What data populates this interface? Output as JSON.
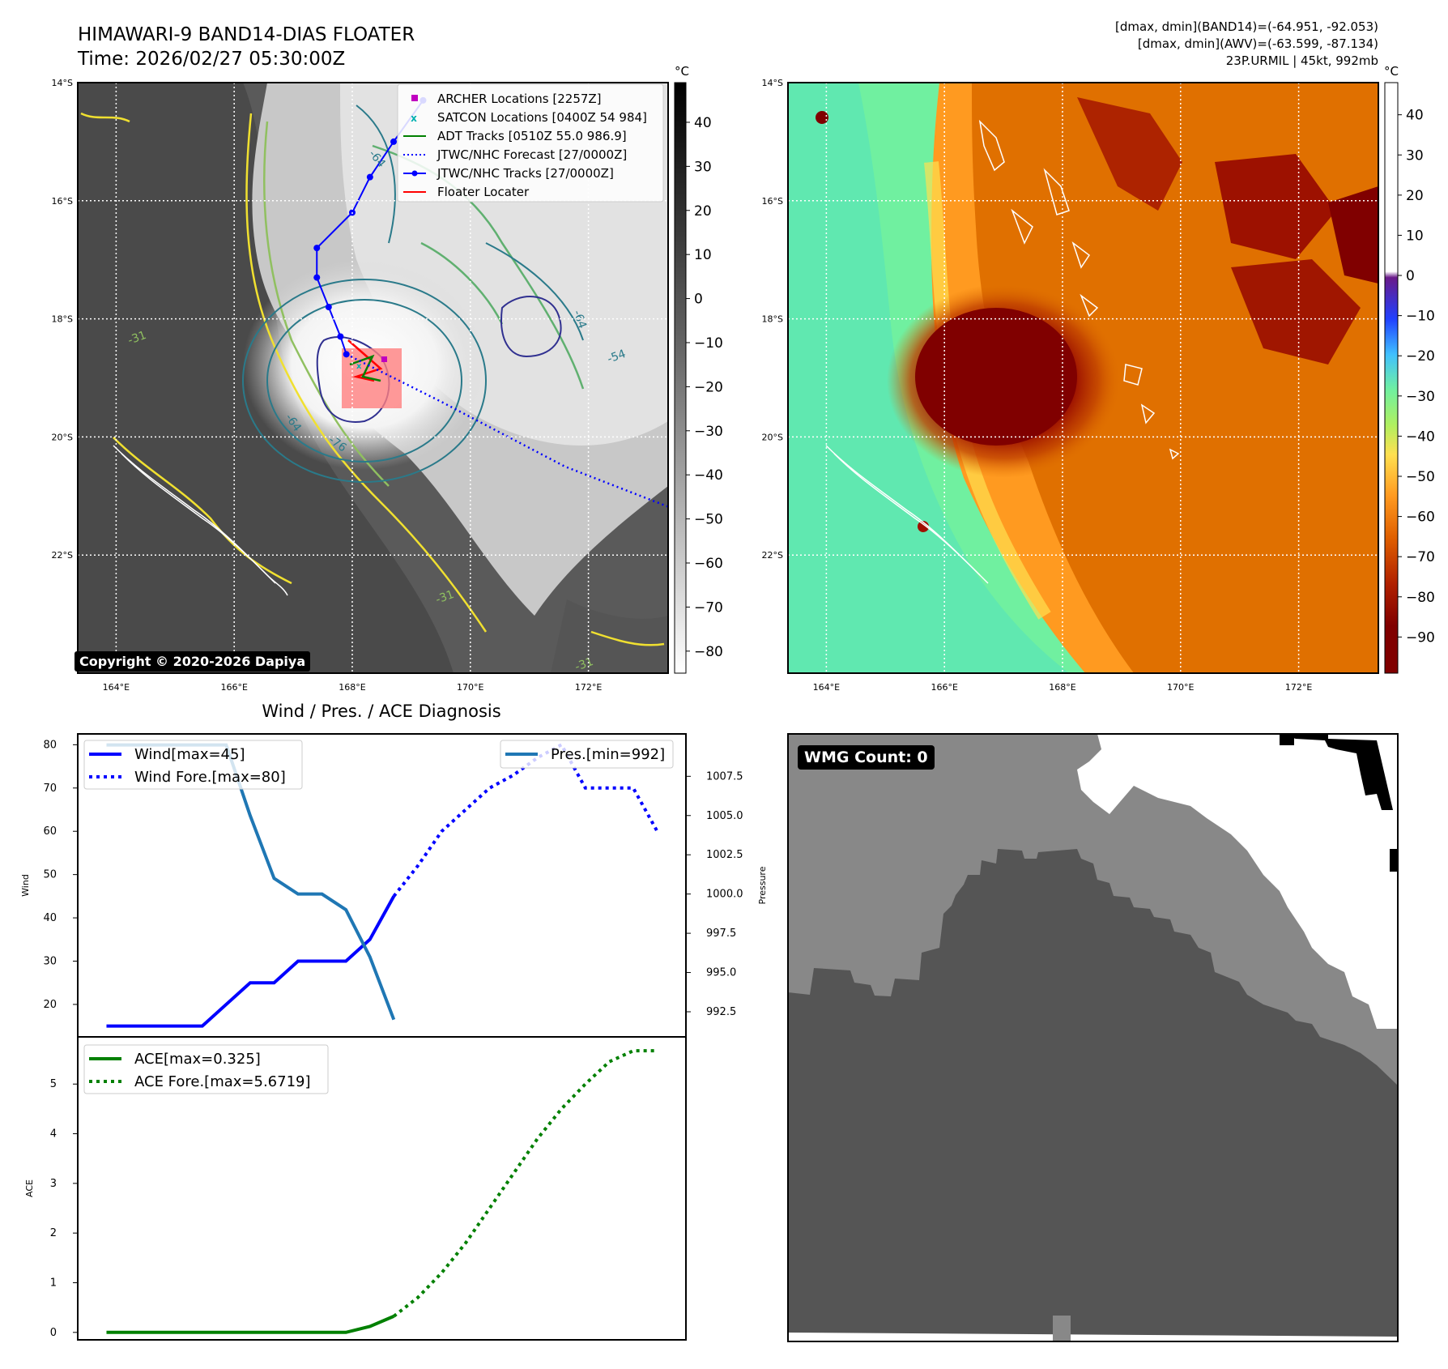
{
  "header": {
    "title_line1": "HIMAWARI-9 BAND14-DIAS FLOATER",
    "title_line2": "Time: 2026/02/27 05:30:00Z",
    "info_line1": "[dmax, dmin](BAND14)=(-64.951, -92.053)",
    "info_line2": "[dmax, dmin](AWV)=(-63.599, -87.134)",
    "info_line3": "23P.URMIL | 45kt, 992mb"
  },
  "copyright": "Copyright © 2020-2026 Dapiya",
  "map": {
    "lat_ticks": [
      "14°S",
      "16°S",
      "18°S",
      "20°S",
      "22°S"
    ],
    "lon_ticks": [
      "164°E",
      "166°E",
      "168°E",
      "170°E",
      "172°E"
    ],
    "lat_range": [
      -24,
      -14
    ],
    "lon_range": [
      163.35,
      173.35
    ],
    "colors": {
      "adt": "#008000",
      "jtwc": "#0000ff",
      "archer": "#c000c0",
      "satcon": "#00b0b0",
      "floater": "#ff0000",
      "floater_box": "#ff8080"
    }
  },
  "legend_map": [
    {
      "label": "ARCHER Locations [2257Z]",
      "icon": "square-marker"
    },
    {
      "label": "SATCON Locations [0400Z 54 984]",
      "icon": "x-marker"
    },
    {
      "label": "ADT Tracks [0510Z 55.0 986.9]",
      "icon": "solid-line"
    },
    {
      "label": "JTWC/NHC Forecast [27/0000Z]",
      "icon": "dotted-line"
    },
    {
      "label": "JTWC/NHC Tracks [27/0000Z]",
      "icon": "line-dot"
    },
    {
      "label": "Floater Locater",
      "icon": "red-line"
    }
  ],
  "contour_labels": [
    "-64",
    "-64",
    "-76",
    "-64",
    "-54",
    "-31",
    "-31",
    "-31"
  ],
  "colorbar_gray": {
    "unit": "°C",
    "ticks": [
      "40",
      "30",
      "20",
      "10",
      "0",
      "−10",
      "−20",
      "−30",
      "−40",
      "−50",
      "−60",
      "−70",
      "−80"
    ],
    "values": [
      40,
      30,
      20,
      10,
      0,
      -10,
      -20,
      -30,
      -40,
      -50,
      -60,
      -70,
      -80
    ],
    "range": [
      -85,
      49
    ]
  },
  "colorbar_color": {
    "unit": "°C",
    "ticks": [
      "40",
      "30",
      "20",
      "10",
      "0",
      "−10",
      "−20",
      "−30",
      "−40",
      "−50",
      "−60",
      "−70",
      "−80",
      "−90"
    ],
    "values": [
      40,
      30,
      20,
      10,
      0,
      -10,
      -20,
      -30,
      -40,
      -50,
      -60,
      -70,
      -80,
      -90
    ],
    "range": [
      -99,
      48
    ]
  },
  "chart_data": [
    {
      "type": "line",
      "title": "Wind / Pres. / ACE Diagnosis",
      "ylabel": "Wind",
      "ylabel_right": "Pressure",
      "ylim": [
        12.5,
        82.5
      ],
      "yticks": [
        20,
        30,
        40,
        50,
        60,
        70,
        80
      ],
      "y2lim": [
        990.9,
        1010.2
      ],
      "y2ticks": [
        992.5,
        995.0,
        997.5,
        1000.0,
        1002.5,
        1005.0,
        1007.5
      ],
      "y2tick_labels": [
        "992.5",
        "995.0",
        "997.5",
        "1000.0",
        "1002.5",
        "1005.0",
        "1007.5"
      ],
      "xlim": [
        -0.2,
        25.2
      ],
      "series": [
        {
          "name": "Wind[max=45]",
          "style": "solid",
          "color": "#0000ff",
          "axis": "left",
          "x": [
            1,
            2,
            3,
            4,
            5,
            6,
            7,
            8,
            9,
            10,
            11,
            12,
            13
          ],
          "values": [
            15,
            15,
            15,
            15,
            15,
            20,
            25,
            25,
            30,
            30,
            30,
            35,
            45
          ]
        },
        {
          "name": "Wind Fore.[max=80]",
          "style": "dotted",
          "color": "#0000ff",
          "axis": "left",
          "x": [
            13,
            14,
            15,
            16,
            17,
            18,
            19,
            20,
            21,
            22,
            23,
            24
          ],
          "values": [
            45,
            52,
            60,
            65,
            70,
            73,
            77,
            80,
            70,
            70,
            70,
            60
          ]
        },
        {
          "name": "Pres.[min=992]",
          "style": "solid",
          "color": "#1f77b4",
          "axis": "right",
          "x": [
            1,
            2,
            3,
            4,
            5,
            6,
            7,
            8,
            9,
            10,
            11,
            12,
            13
          ],
          "values": [
            1009.5,
            1009.5,
            1009.5,
            1009.5,
            1009.5,
            1009.5,
            1005,
            1001,
            1000,
            1000,
            999,
            996,
            992
          ]
        }
      ]
    },
    {
      "type": "line",
      "ylabel": "ACE",
      "ylim": [
        -0.15,
        5.95
      ],
      "yticks": [
        0,
        1,
        2,
        3,
        4,
        5
      ],
      "xlim": [
        -0.2,
        25.2
      ],
      "series": [
        {
          "name": "ACE[max=0.325]",
          "style": "solid",
          "color": "#008000",
          "x": [
            1,
            2,
            3,
            4,
            5,
            6,
            7,
            8,
            9,
            10,
            11,
            12,
            13
          ],
          "values": [
            0,
            0,
            0,
            0,
            0,
            0,
            0,
            0,
            0,
            0,
            0,
            0.12,
            0.325
          ]
        },
        {
          "name": "ACE Fore.[max=5.6719]",
          "style": "dotted",
          "color": "#008000",
          "x": [
            13,
            14,
            15,
            16,
            17,
            18,
            19,
            20,
            21,
            22,
            23,
            24
          ],
          "values": [
            0.325,
            0.7,
            1.2,
            1.8,
            2.5,
            3.2,
            3.9,
            4.5,
            5.0,
            5.45,
            5.67,
            5.67
          ]
        }
      ]
    }
  ],
  "wmg": {
    "label": "WMG Count: 0"
  }
}
